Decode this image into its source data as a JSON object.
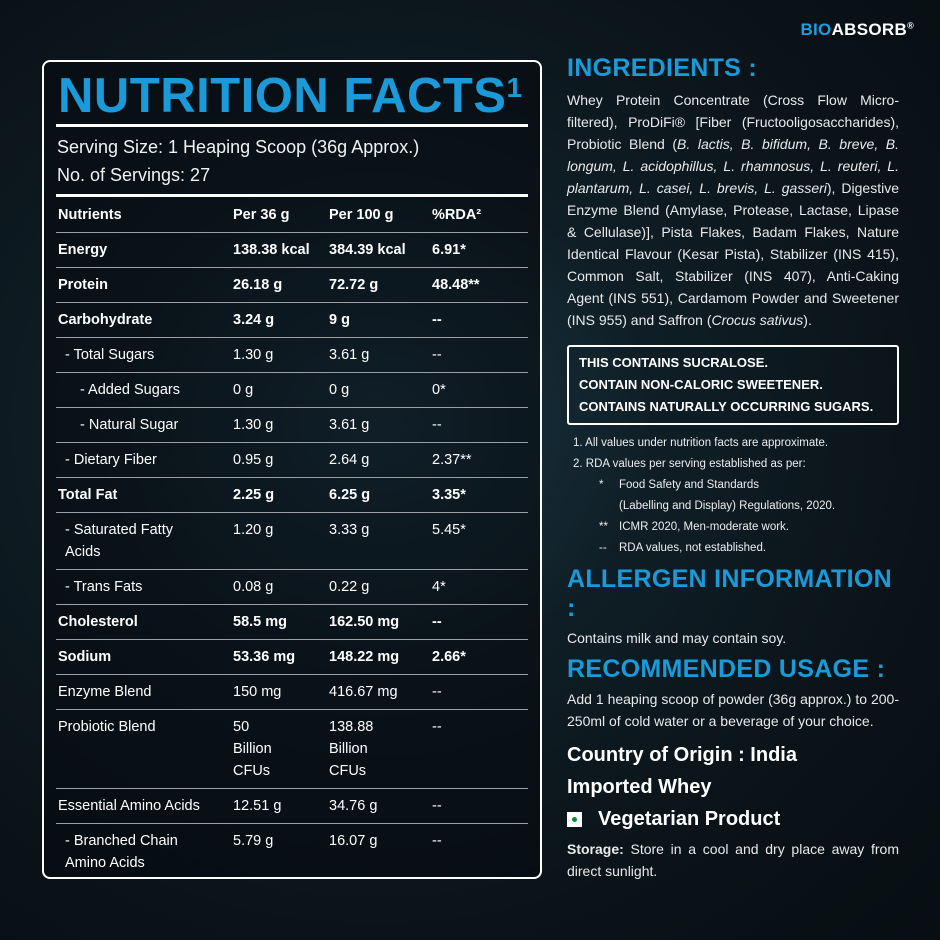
{
  "brand": {
    "part1": "BIO",
    "part2": "ABSORB",
    "mark": "®"
  },
  "nutrition": {
    "title": "NUTRITION FACTS",
    "title_sup": "1",
    "serving_size": "Serving Size: 1 Heaping Scoop (36g Approx.)",
    "servings": "No. of Servings: 27",
    "rows": [
      {
        "cells": [
          "Nutrients",
          "Per 36 g",
          "Per 100 g",
          "%RDA²"
        ],
        "bold": true,
        "indent": 0
      },
      {
        "cells": [
          "Energy",
          "138.38 kcal",
          "384.39 kcal",
          "6.91*"
        ],
        "bold": true,
        "indent": 0
      },
      {
        "cells": [
          "Protein",
          "26.18 g",
          "72.72 g",
          "48.48**"
        ],
        "bold": true,
        "indent": 0
      },
      {
        "cells": [
          "Carbohydrate",
          "3.24 g",
          "9 g",
          "--"
        ],
        "bold": true,
        "indent": 0
      },
      {
        "cells": [
          "- Total Sugars",
          "1.30 g",
          "3.61 g",
          "--"
        ],
        "bold": false,
        "indent": 1
      },
      {
        "cells": [
          "- Added Sugars",
          "0 g",
          "0 g",
          "0*"
        ],
        "bold": false,
        "indent": 2
      },
      {
        "cells": [
          "- Natural Sugar",
          "1.30 g",
          "3.61 g",
          "--"
        ],
        "bold": false,
        "indent": 2
      },
      {
        "cells": [
          "- Dietary Fiber",
          "0.95 g",
          "2.64 g",
          "2.37**"
        ],
        "bold": false,
        "indent": 1
      },
      {
        "cells": [
          "Total Fat",
          "2.25 g",
          "6.25 g",
          "3.35*"
        ],
        "bold": true,
        "indent": 0
      },
      {
        "cells": [
          "- Saturated Fatty\n  Acids",
          "1.20 g",
          "3.33 g",
          "5.45*"
        ],
        "bold": false,
        "indent": 1
      },
      {
        "cells": [
          "- Trans Fats",
          "0.08 g",
          "0.22 g",
          "4*"
        ],
        "bold": false,
        "indent": 1
      },
      {
        "cells": [
          "Cholesterol",
          "58.5 mg",
          "162.50 mg",
          "--"
        ],
        "bold": true,
        "indent": 0
      },
      {
        "cells": [
          "Sodium",
          "53.36 mg",
          "148.22 mg",
          "2.66*"
        ],
        "bold": true,
        "indent": 0
      },
      {
        "cells": [
          "Enzyme Blend",
          "150 mg",
          "416.67 mg",
          "--"
        ],
        "bold": false,
        "indent": 0
      },
      {
        "cells": [
          "Probiotic Blend",
          "50\nBillion\nCFUs",
          "138.88\nBillion\nCFUs",
          "--"
        ],
        "bold": false,
        "indent": 0
      },
      {
        "cells": [
          "Essential Amino Acids",
          "12.51 g",
          "34.76 g",
          "--"
        ],
        "bold": false,
        "indent": 0
      },
      {
        "cells": [
          "- Branched Chain\n  Amino Acids",
          "5.79 g",
          "16.07 g",
          "--"
        ],
        "bold": false,
        "indent": 1
      }
    ]
  },
  "ingredients": {
    "heading": "INGREDIENTS :",
    "segments": [
      {
        "t": "Whey Protein Concentrate (Cross Flow Micro-filtered), ProDiFi® [Fiber (Fructooligosaccharides), Probiotic Blend (",
        "i": false
      },
      {
        "t": "B. lactis, B. bifidum, B. breve, B. longum, L. acidophillus, L. rhamnosus, L. reuteri, L. plantarum, L. casei, L. brevis, L. gasseri",
        "i": true
      },
      {
        "t": "), Digestive Enzyme Blend (Amylase, Protease, Lactase, Lipase & Cellulase)], Pista Flakes, Badam Flakes, Nature Identical Flavour (Kesar Pista), Stabilizer (INS 415), Common Salt, Stabilizer (INS 407), Anti-Caking Agent (INS 551), Cardamom Powder and Sweetener (INS 955) and Saffron (",
        "i": false
      },
      {
        "t": "Crocus sativus",
        "i": true
      },
      {
        "t": ").",
        "i": false
      }
    ]
  },
  "warning": [
    "THIS CONTAINS SUCRALOSE.",
    "CONTAIN NON-CALORIC SWEETENER.",
    "CONTAINS NATURALLY OCCURRING SUGARS."
  ],
  "notes": {
    "n1": "1.  All values under nutrition facts are approximate.",
    "n2": "2.  RDA values per serving established as per:",
    "sub": [
      {
        "mark": "*",
        "text": "Food Safety and Standards\n(Labelling  and  Display) Regulations, 2020."
      },
      {
        "mark": "**",
        "text": "ICMR 2020, Men-moderate work."
      },
      {
        "mark": "--",
        "text": "RDA values, not established."
      }
    ]
  },
  "allergen": {
    "heading": "ALLERGEN INFORMATION :",
    "text": "Contains milk and may contain soy."
  },
  "usage": {
    "heading": "RECOMMENDED USAGE :",
    "text": "Add 1 heaping scoop of powder (36g approx.) to 200-250ml of cold water or a beverage of your choice."
  },
  "origin": "Country of Origin : India",
  "imported": "Imported Whey",
  "veg": "Vegetarian Product",
  "storage": {
    "label": "Storage:",
    "text": " Store in a cool and dry place away from direct sunlight."
  },
  "colors": {
    "accent": "#1a9ad8",
    "veg_dot": "#0a8a3a"
  }
}
